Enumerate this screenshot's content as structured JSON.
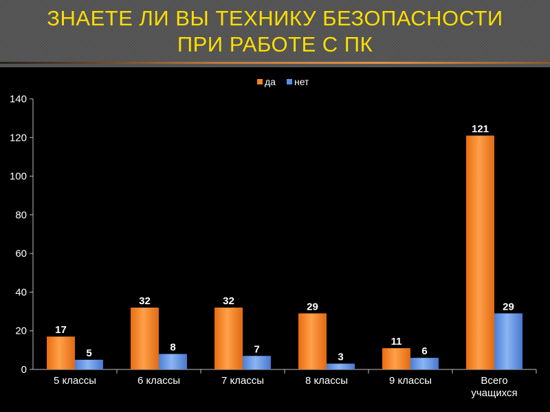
{
  "title": "ЗНАЕТЕ ЛИ ВЫ ТЕХНИКУ БЕЗОПАСНОСТИ\nПРИ РАБОТЕ С ПК",
  "colors": {
    "title": "#ffde00",
    "series_da": "#f58220",
    "series_net": "#5b8ee6",
    "axis_text": "#ffffff",
    "background": "#000000"
  },
  "chart_data": {
    "type": "bar",
    "categories": [
      "5 классы",
      "6 классы",
      "7 классы",
      "8 классы",
      "9 классы",
      "Всего\nучащихся"
    ],
    "series": [
      {
        "name": "да",
        "values": [
          17,
          32,
          32,
          29,
          11,
          121
        ]
      },
      {
        "name": "нет",
        "values": [
          5,
          8,
          7,
          3,
          6,
          29
        ]
      }
    ],
    "ylim": [
      0,
      140
    ],
    "yticks": [
      0,
      20,
      40,
      60,
      80,
      100,
      120,
      140
    ],
    "grid": false,
    "legend": "top-center",
    "data_labels": true
  }
}
